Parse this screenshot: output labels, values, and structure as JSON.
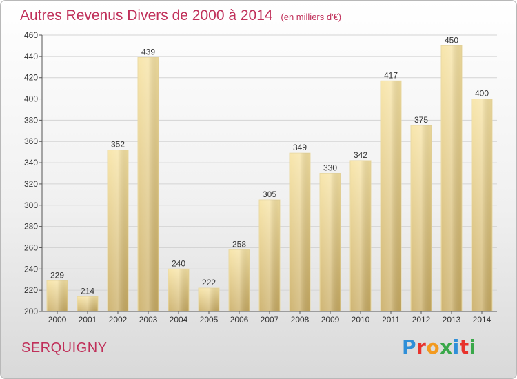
{
  "header": {
    "title": "Autres Revenus Divers de 2000 à 2014",
    "unit": "(en milliers d'€)"
  },
  "footer": {
    "commune": "SERQUIGNY",
    "logo_text": "Proxiti",
    "logo_colors": [
      "#2f8fd8",
      "#e8322c",
      "#f39a1f",
      "#3aa84a",
      "#2f8fd8",
      "#e8322c",
      "#3aa84a"
    ]
  },
  "chart_data": {
    "type": "bar",
    "title": "Autres Revenus Divers de 2000 à 2014",
    "subtitle": "(en milliers d'€)",
    "xlabel": "",
    "ylabel": "",
    "categories": [
      "2000",
      "2001",
      "2002",
      "2003",
      "2004",
      "2005",
      "2006",
      "2007",
      "2008",
      "2009",
      "2010",
      "2011",
      "2012",
      "2013",
      "2014"
    ],
    "values": [
      229,
      214,
      352,
      439,
      240,
      222,
      258,
      305,
      349,
      330,
      342,
      417,
      375,
      450,
      400
    ],
    "ylim": [
      200,
      460
    ],
    "yticks": [
      200,
      220,
      240,
      260,
      280,
      300,
      320,
      340,
      360,
      380,
      400,
      420,
      440,
      460
    ],
    "grid": true,
    "legend": "none",
    "bar_color_light": "#f7e3a3",
    "bar_color_dark": "#c9ac63"
  }
}
